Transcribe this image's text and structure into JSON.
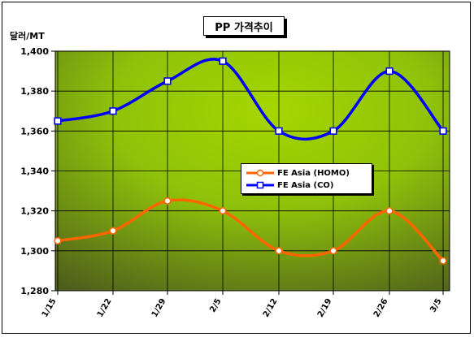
{
  "chart_data": {
    "type": "line",
    "title": "PP 가격추이",
    "ylabel": "달러/MT",
    "xlabel": "",
    "categories": [
      "1/15",
      "1/22",
      "1/29",
      "2/5",
      "2/12",
      "2/19",
      "2/26",
      "3/5"
    ],
    "ylim": [
      1280,
      1400
    ],
    "yticks": [
      "1,280",
      "1,300",
      "1,320",
      "1,340",
      "1,360",
      "1,380",
      "1,400"
    ],
    "series": [
      {
        "name": "FE Asia (HOMO)",
        "values": [
          1305,
          1310,
          1325,
          1320,
          1300,
          1300,
          1320,
          1295
        ],
        "color": "#ff6600",
        "marker": "circle"
      },
      {
        "name": "FE Asia (CO)",
        "values": [
          1365,
          1370,
          1385,
          1395,
          1360,
          1360,
          1390,
          1360
        ],
        "color": "#0000ff",
        "marker": "square"
      }
    ],
    "legend": "center-right",
    "grid": true,
    "colors": {
      "plot_bg_light": "#9acd00",
      "plot_bg_dark": "#556b1a"
    }
  }
}
